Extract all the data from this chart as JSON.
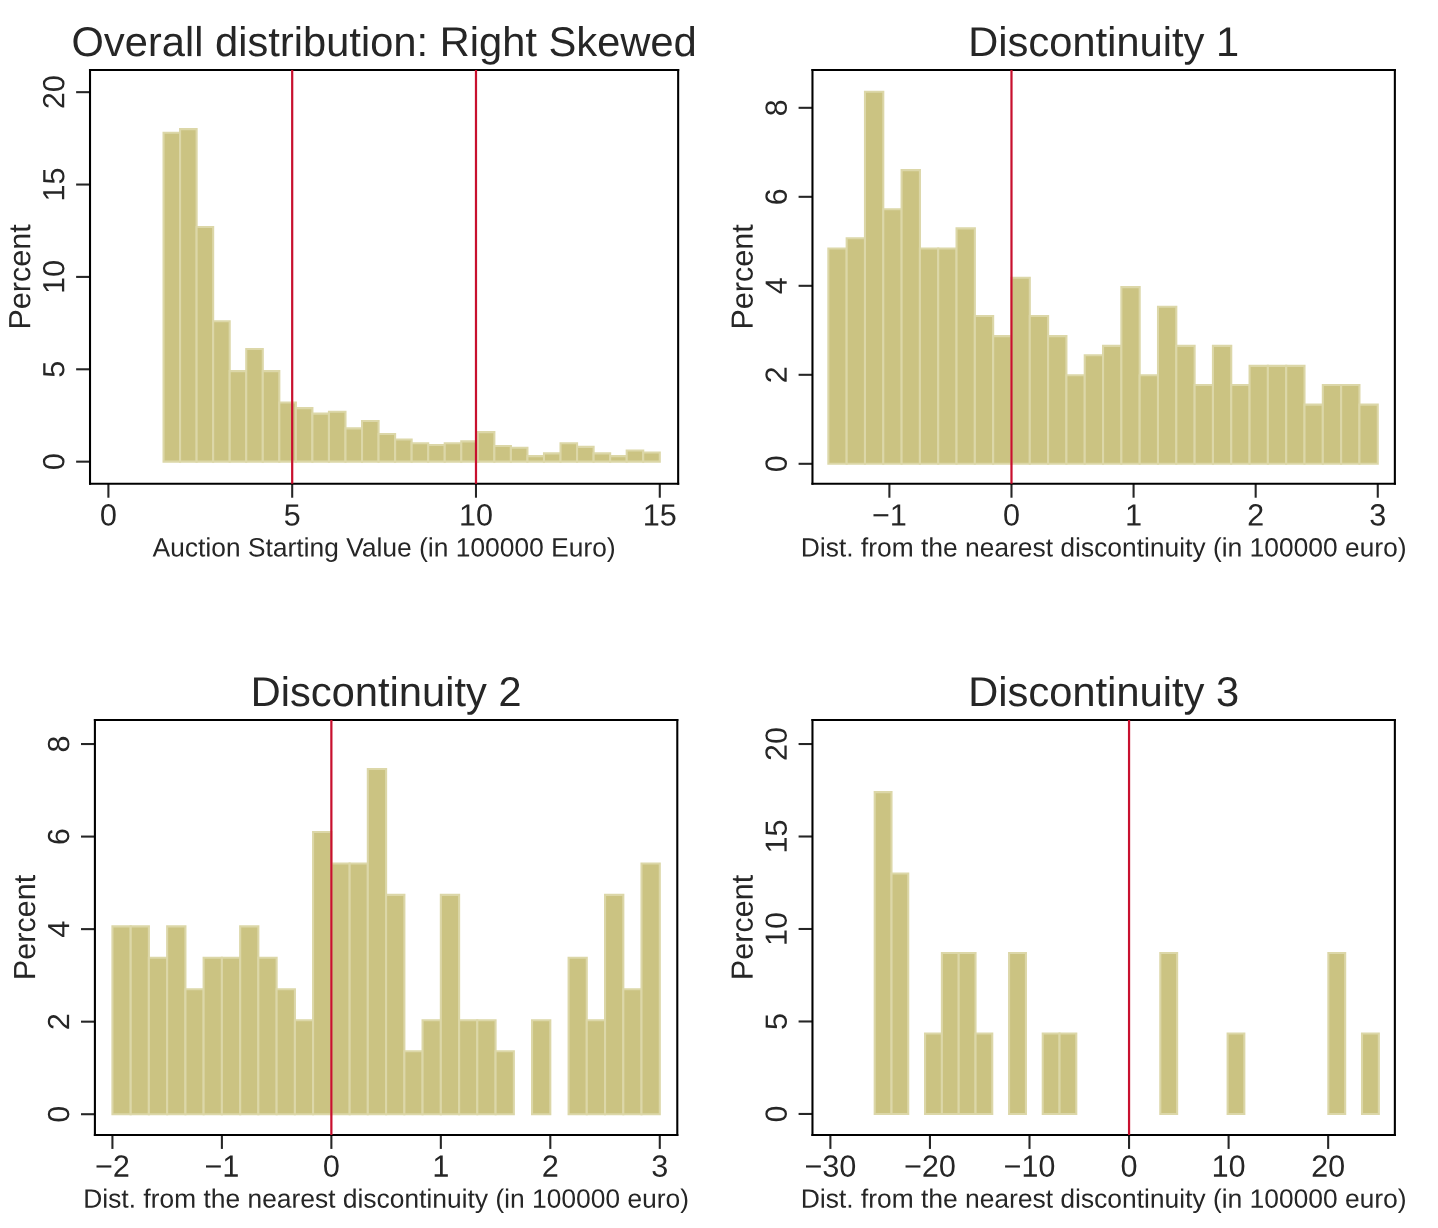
{
  "chart_data": [
    {
      "type": "histogram",
      "title": "Overall distribution: Right Skewed",
      "xlabel": "Auction Starting Value (in 100000 Euro)",
      "ylabel": "Percent",
      "color": "#cbc382",
      "bins": [
        1.5,
        1.95,
        2.4,
        2.85,
        3.3,
        3.75,
        4.2,
        4.65,
        5.1,
        5.55,
        6.0,
        6.45,
        6.9,
        7.35,
        7.8,
        8.25,
        8.7,
        9.15,
        9.6,
        10.05,
        10.5,
        10.95,
        11.4,
        11.85,
        12.3,
        12.75,
        13.2,
        13.65,
        14.1,
        14.55,
        15.0
      ],
      "values": [
        17.8,
        18.0,
        12.7,
        7.6,
        4.9,
        6.1,
        4.9,
        3.2,
        2.9,
        2.6,
        2.7,
        1.8,
        2.2,
        1.5,
        1.2,
        1.0,
        0.9,
        1.0,
        1.1,
        1.6,
        0.85,
        0.75,
        0.3,
        0.45,
        1.0,
        0.8,
        0.45,
        0.3,
        0.6,
        0.5
      ],
      "xlim": [
        -0.5,
        15.5
      ],
      "ylim": [
        -1.2,
        21.2
      ],
      "xticks": [
        0,
        5,
        10,
        15
      ],
      "yticks": [
        0,
        5,
        10,
        15,
        20
      ],
      "grid": false,
      "ref_lines": [
        {
          "axis": "x",
          "value": 5,
          "color": "#c8102e"
        },
        {
          "axis": "x",
          "value": 10,
          "color": "#c8102e"
        }
      ]
    },
    {
      "type": "histogram",
      "title": "Discontinuity 1",
      "xlabel": "Dist. from the nearest discontinuity (in 100000 euro)",
      "ylabel": "Percent",
      "color": "#cbc382",
      "bins": [
        -1.5,
        -1.35,
        -1.2,
        -1.05,
        -0.9,
        -0.75,
        -0.6,
        -0.45,
        -0.3,
        -0.15,
        0.0,
        0.15,
        0.3,
        0.45,
        0.6,
        0.75,
        0.9,
        1.05,
        1.2,
        1.35,
        1.5,
        1.65,
        1.8,
        1.95,
        2.1,
        2.25,
        2.4,
        2.55,
        2.7,
        2.85,
        3.0
      ],
      "values": [
        4.84,
        5.07,
        8.36,
        5.72,
        6.6,
        4.84,
        4.84,
        5.29,
        3.32,
        2.87,
        4.18,
        3.32,
        2.87,
        1.99,
        2.44,
        2.65,
        3.97,
        1.99,
        3.53,
        2.65,
        1.77,
        2.65,
        1.77,
        2.2,
        2.2,
        2.2,
        1.33,
        1.77,
        1.77,
        1.33
      ],
      "xlim": [
        -1.63,
        3.14
      ],
      "ylim": [
        -0.45,
        8.85
      ],
      "xticks": [
        {
          "value": -1,
          "label": "−1"
        },
        0,
        1,
        2,
        3
      ],
      "yticks": [
        0,
        2,
        4,
        6,
        8
      ],
      "grid": false,
      "ref_lines": [
        {
          "axis": "x",
          "value": 0,
          "color": "#c8102e"
        }
      ]
    },
    {
      "type": "histogram",
      "title": "Discontinuity 2",
      "xlabel": "Dist. from the nearest discontinuity (in 100000 euro)",
      "ylabel": "Percent",
      "color": "#cbc382",
      "bins": [
        -2.0,
        -1.833,
        -1.667,
        -1.5,
        -1.333,
        -1.167,
        -1.0,
        -0.833,
        -0.667,
        -0.5,
        -0.333,
        -0.167,
        0.0,
        0.167,
        0.333,
        0.5,
        0.667,
        0.833,
        1.0,
        1.167,
        1.333,
        1.5,
        1.667,
        1.833,
        2.0,
        2.167,
        2.333,
        2.5,
        2.667,
        2.833,
        3.0
      ],
      "values": [
        4.06,
        4.06,
        3.38,
        4.06,
        2.7,
        3.38,
        3.38,
        4.06,
        3.38,
        2.7,
        2.03,
        6.1,
        5.42,
        5.42,
        7.46,
        4.74,
        1.36,
        2.03,
        4.74,
        2.03,
        2.03,
        1.36,
        null,
        2.03,
        null,
        3.38,
        2.03,
        4.74,
        2.7,
        5.42
      ],
      "xlim": [
        -2.16,
        3.16
      ],
      "ylim": [
        -0.45,
        8.52
      ],
      "xticks": [
        {
          "value": -2,
          "label": "−2"
        },
        {
          "value": -1,
          "label": "−1"
        },
        0,
        1,
        2,
        3
      ],
      "yticks": [
        0,
        2,
        4,
        6,
        8
      ],
      "grid": false,
      "ref_lines": [
        {
          "axis": "x",
          "value": 0,
          "color": "#c8102e"
        }
      ]
    },
    {
      "type": "histogram",
      "title": "Discontinuity 3",
      "xlabel": "Dist. from the nearest discontinuity (in 100000 euro)",
      "ylabel": "Percent",
      "color": "#cbc382",
      "bins": [
        -25.55,
        -23.86,
        -22.18,
        -20.49,
        -18.8,
        -17.11,
        -15.42,
        -13.74,
        -12.05,
        -10.36,
        -8.67,
        -6.98,
        -5.3,
        -3.61,
        -1.92,
        -0.23,
        1.46,
        3.14,
        4.83,
        6.52,
        8.21,
        9.9,
        11.58,
        13.27,
        14.96,
        16.65,
        18.34,
        20.02,
        21.71,
        23.4,
        25.09
      ],
      "values": [
        17.4,
        13.0,
        null,
        4.35,
        8.7,
        8.7,
        4.35,
        null,
        8.7,
        null,
        4.35,
        4.35,
        null,
        null,
        null,
        null,
        null,
        8.7,
        null,
        null,
        null,
        4.35,
        null,
        null,
        null,
        null,
        null,
        8.7,
        null,
        4.35
      ],
      "xlim": [
        -31.8,
        26.7
      ],
      "ylim": [
        -1.14,
        21.3
      ],
      "xticks": [
        {
          "value": -30,
          "label": "−30"
        },
        {
          "value": -20,
          "label": "−20"
        },
        {
          "value": -10,
          "label": "−10"
        },
        0,
        10,
        20
      ],
      "yticks": [
        0,
        5,
        10,
        15,
        20
      ],
      "grid": false,
      "ref_lines": [
        {
          "axis": "x",
          "value": 0,
          "color": "#c8102e"
        }
      ]
    }
  ]
}
